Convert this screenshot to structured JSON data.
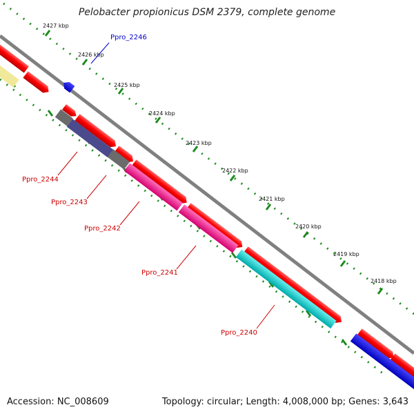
{
  "title": "Pelobacter propionicus DSM 2379, complete genome",
  "accession": "Accession: NC_008609",
  "summary": "Topology: circular; Length: 4,008,000 bp; Genes: 3,643",
  "ticks": [
    "2427 kbp",
    "2426 kbp",
    "2425 kbp",
    "2424 kbp",
    "2423 kbp",
    "2422 kbp",
    "2421 kbp",
    "2420 kbp",
    "2419 kbp",
    "2418 kbp"
  ],
  "gene_labels": [
    "Ppro_2246",
    "Ppro_2244",
    "Ppro_2243",
    "Ppro_2242",
    "Ppro_2241",
    "Ppro_2240"
  ],
  "colors": {
    "backbone": "#808080",
    "tick": "#1f8a1f",
    "cds": "#ff0000",
    "label_red": "#cc0000",
    "label_blue": "#0000cc"
  }
}
